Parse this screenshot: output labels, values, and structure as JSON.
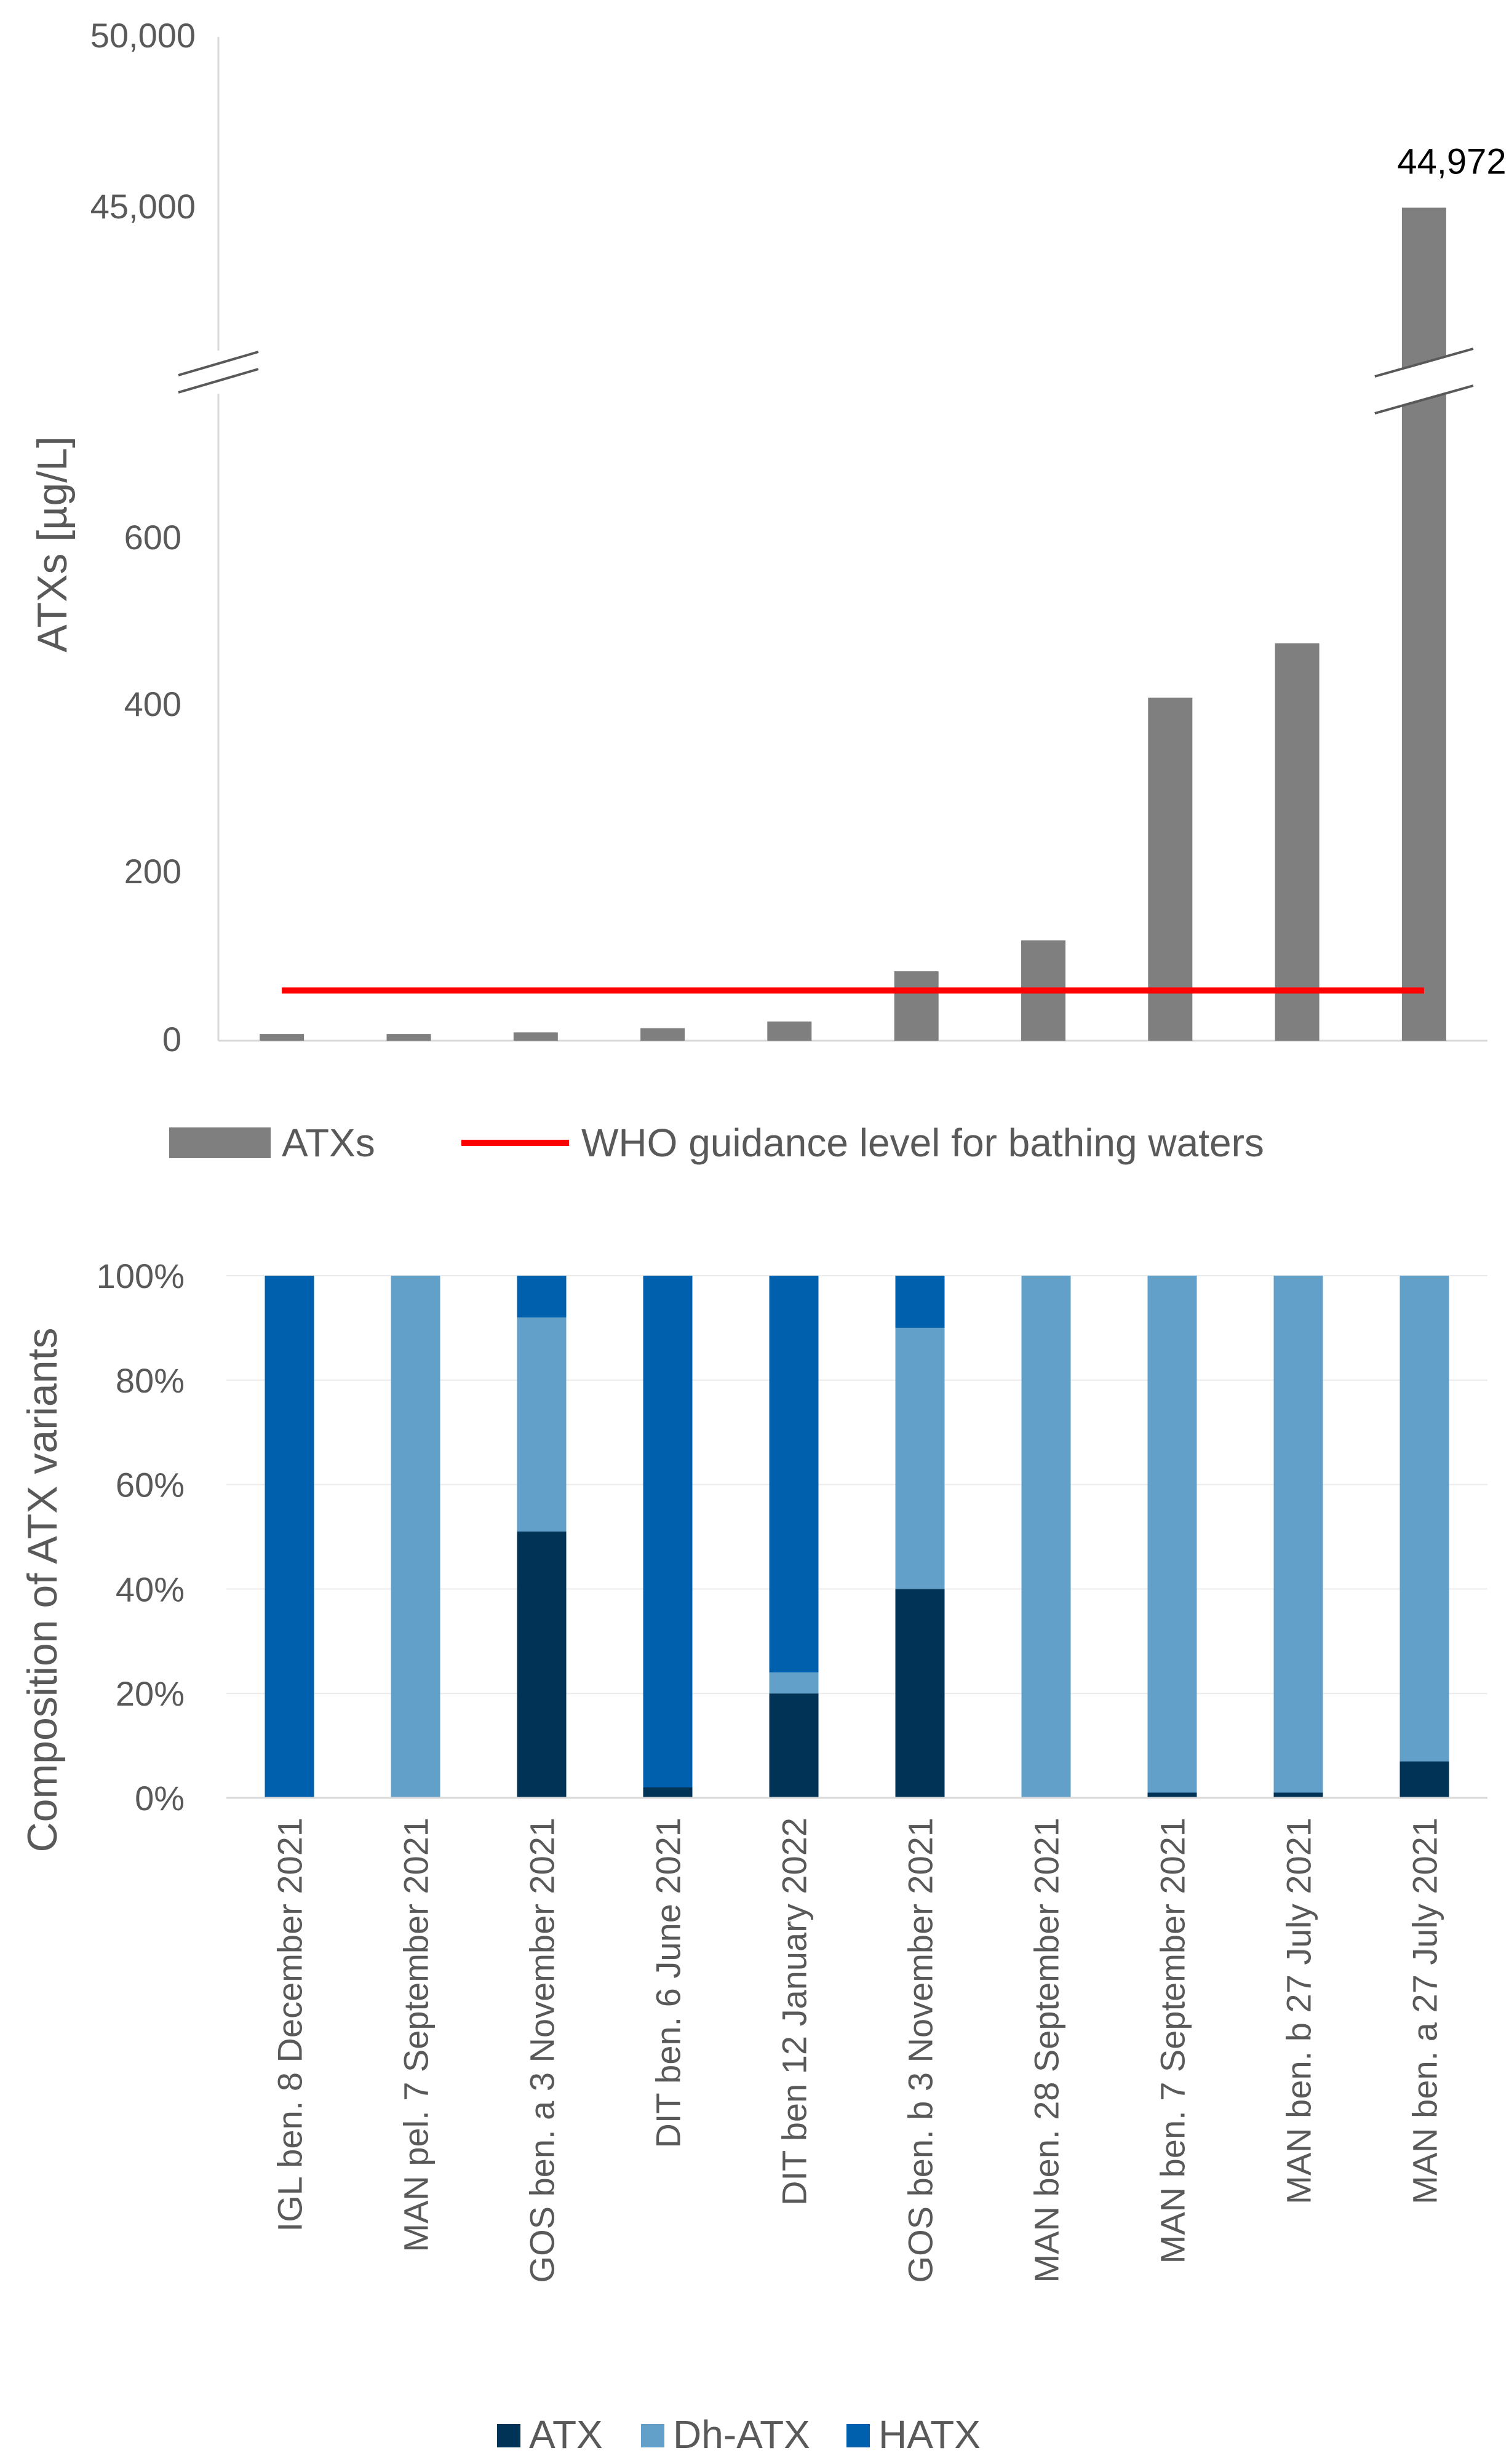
{
  "chart_data": [
    {
      "type": "bar",
      "title": "",
      "xlabel": "",
      "ylabel": "ATXs [µg/L]",
      "ylim": [
        0,
        50000
      ],
      "axis_break": {
        "lower_range": [
          0,
          700
        ],
        "upper_range": [
          40000,
          50000
        ]
      },
      "yticks_lower": [
        "0",
        "200",
        "400",
        "600"
      ],
      "yticks_upper": [
        "45,000",
        "50,000"
      ],
      "categories": [
        "IGL ben. 8 December 2021",
        "MAN pel. 7 September 2021",
        "GOS ben. a 3 November 2021",
        "DIT ben. 6 June 2021",
        "DIT ben 12 January 2022",
        "GOS ben. b 3 November 2021",
        "MAN ben. 28 September 2021",
        "MAN ben. 7 September 2021",
        "MAN ben. b 27 July 2021",
        "MAN ben. a 27 July 2021"
      ],
      "series": [
        {
          "name": "ATXs",
          "color": "#7f7f7f",
          "values": [
            8,
            8,
            10,
            15,
            23,
            83,
            120,
            410,
            475,
            44972
          ]
        }
      ],
      "reference_line": {
        "name": "WHO guidance level for bathing waters",
        "value": 60,
        "color": "#ff0000"
      },
      "data_labels": [
        {
          "category_index": 9,
          "text": "44,972"
        }
      ],
      "legend": [
        "ATXs",
        "WHO guidance level for bathing waters"
      ],
      "legend_position": "bottom"
    },
    {
      "type": "bar",
      "stacked": true,
      "title": "",
      "xlabel": "",
      "ylabel": "Composition of ATX variants",
      "ylim": [
        0,
        100
      ],
      "yticks": [
        "0%",
        "20%",
        "40%",
        "60%",
        "80%",
        "100%"
      ],
      "categories": [
        "IGL ben. 8 December 2021",
        "MAN pel. 7 September 2021",
        "GOS ben. a 3 November 2021",
        "DIT ben. 6 June 2021",
        "DIT ben 12 January 2022",
        "GOS ben. b 3 November 2021",
        "MAN ben. 28 September 2021",
        "MAN ben. 7 September 2021",
        "MAN ben. b 27 July 2021",
        "MAN ben. a 27 July 2021"
      ],
      "series": [
        {
          "name": "ATX",
          "color": "#003356",
          "values": [
            0,
            0,
            51,
            2,
            20,
            40,
            0,
            1,
            1,
            7
          ]
        },
        {
          "name": "Dh-ATX",
          "color": "#62a0ca",
          "values": [
            0,
            100,
            41,
            0,
            4,
            50,
            100,
            99,
            99,
            93
          ]
        },
        {
          "name": "HATX",
          "color": "#0060ad",
          "values": [
            100,
            0,
            8,
            98,
            76,
            10,
            0,
            0,
            0,
            0
          ]
        }
      ],
      "legend": [
        "ATX",
        "Dh-ATX",
        "HATX"
      ],
      "legend_position": "bottom"
    }
  ]
}
